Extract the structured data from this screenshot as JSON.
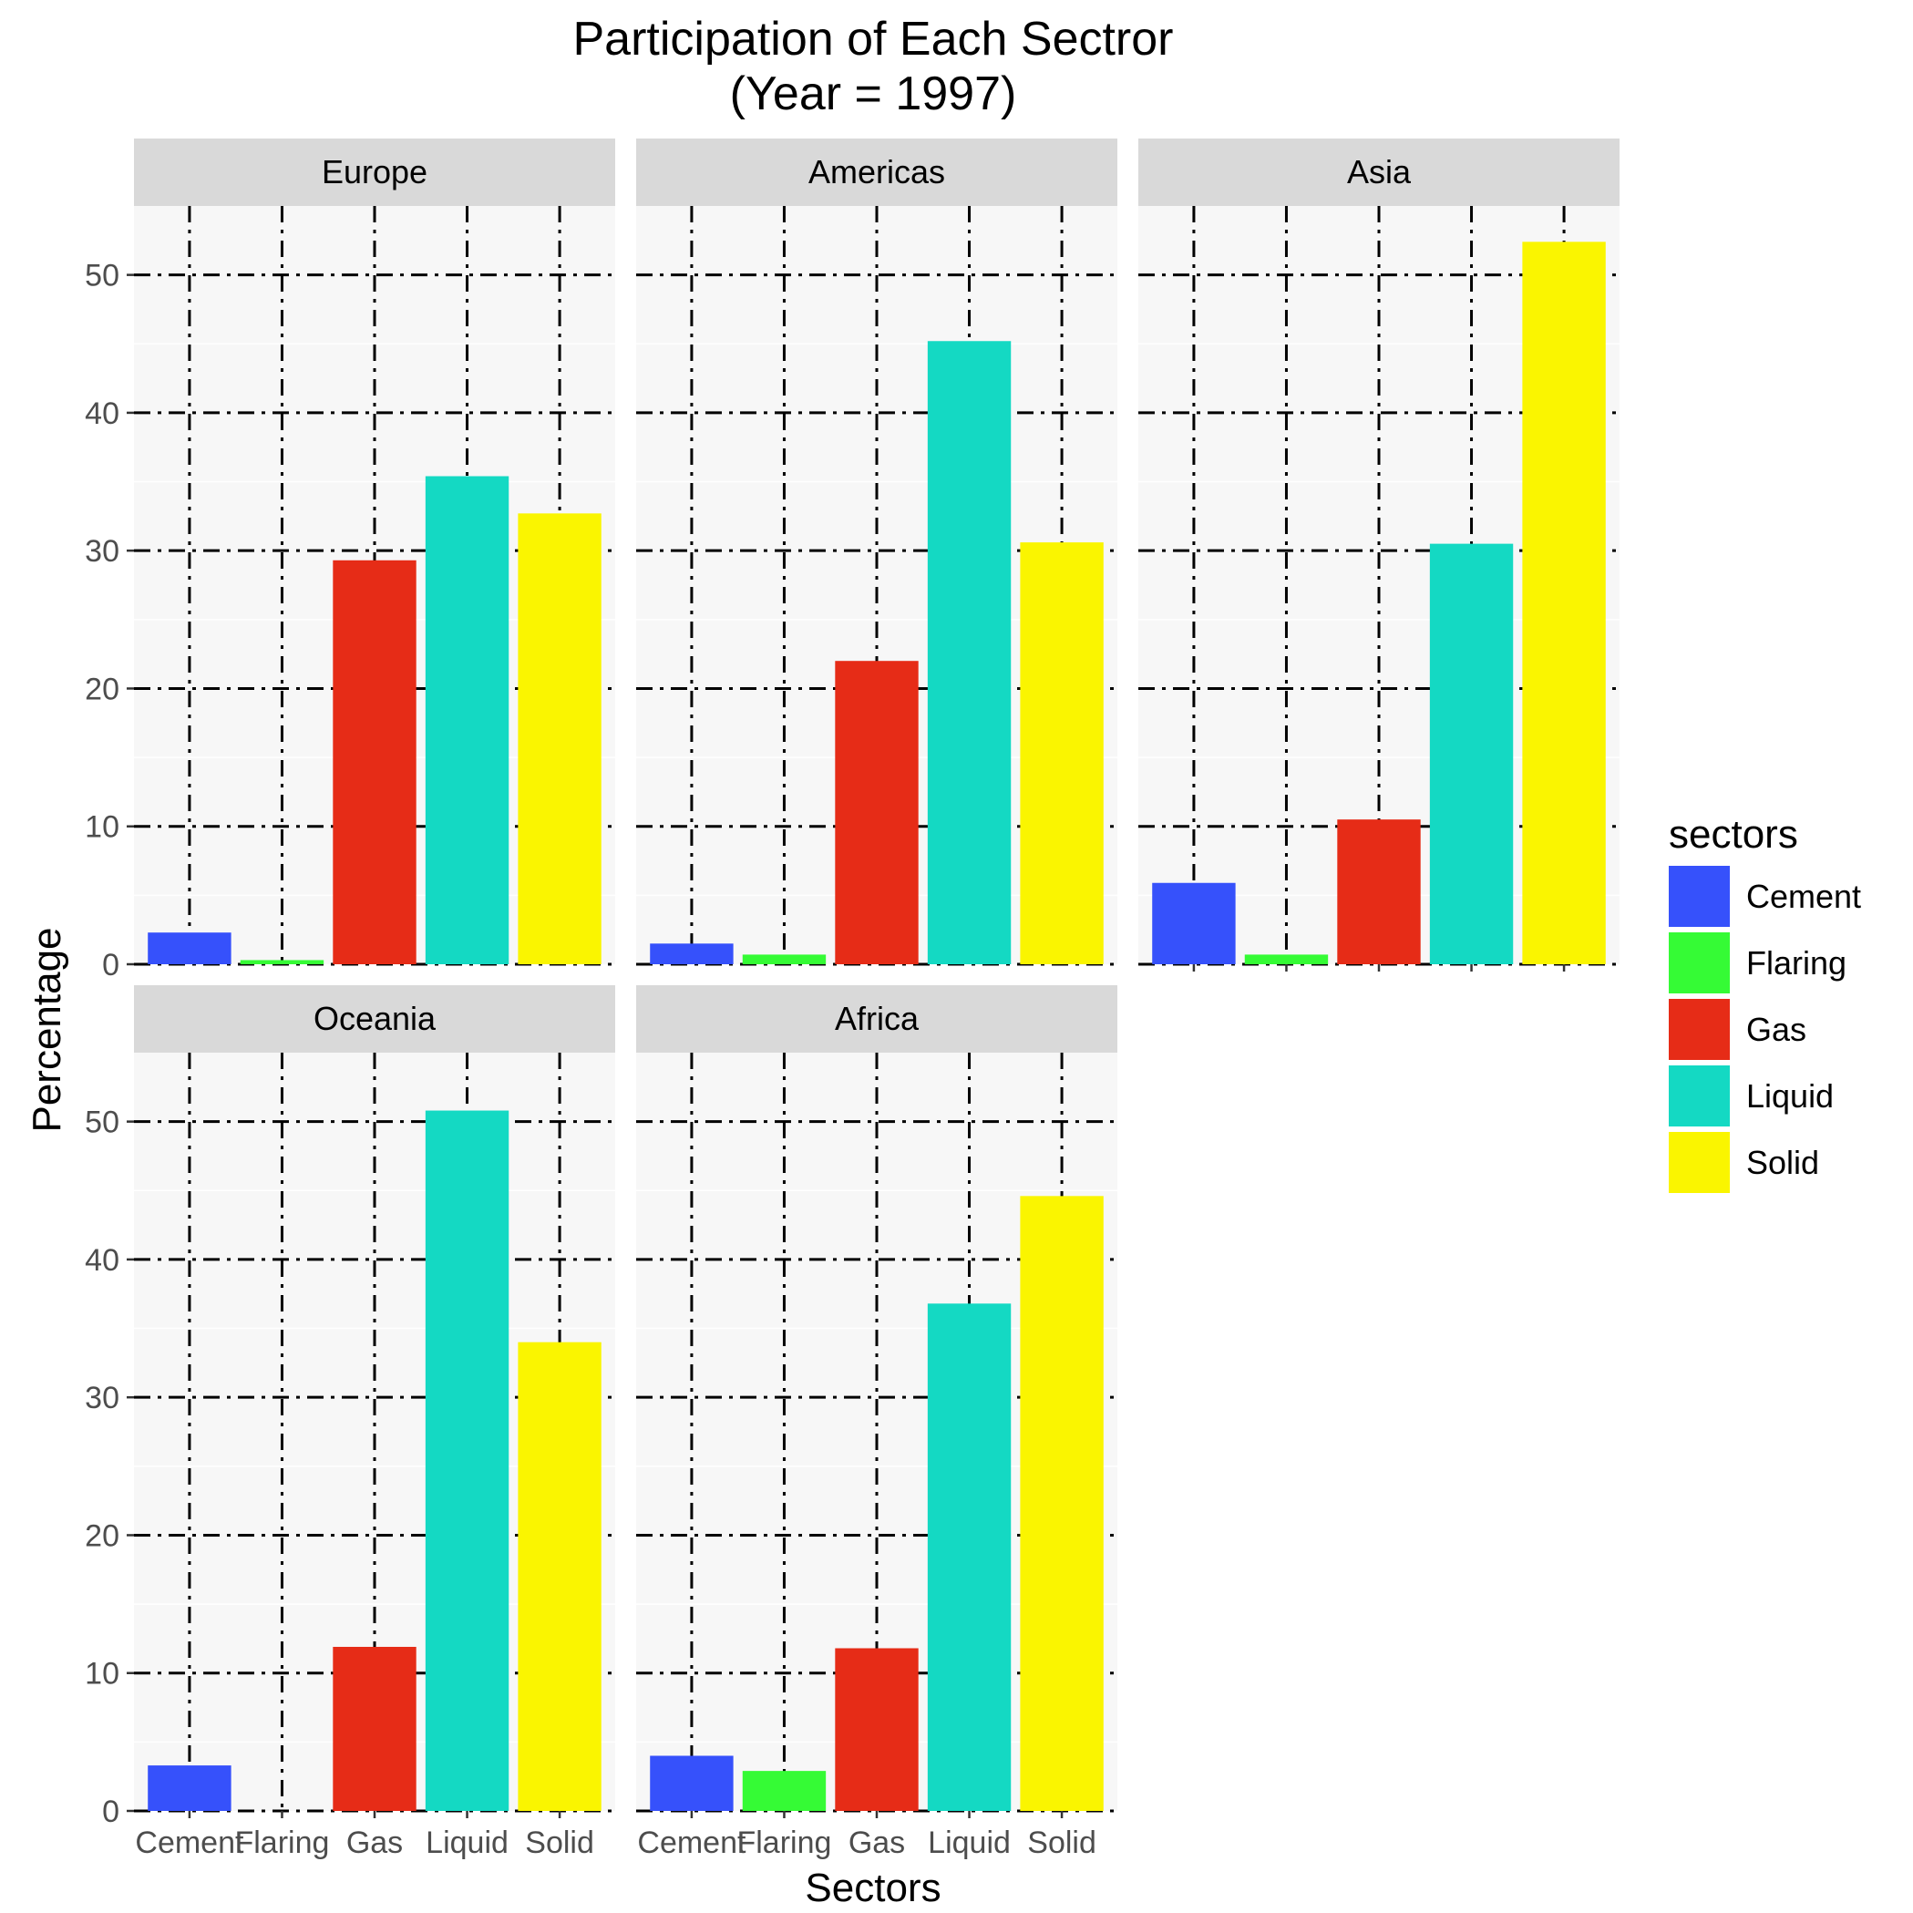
{
  "chart_data": {
    "type": "bar",
    "title": "Participation of Each Sectror",
    "subtitle": "(Year = 1997)",
    "xlabel": "Sectors",
    "ylabel": "Percentage",
    "ylim": [
      0,
      55
    ],
    "yticks": [
      0,
      10,
      20,
      30,
      40,
      50
    ],
    "grid": true,
    "legend_title": "sectors",
    "legend_position": "right",
    "categories": [
      "Cement",
      "Flaring",
      "Gas",
      "Liquid",
      "Solid"
    ],
    "colors": {
      "Cement": "#3651fb",
      "Flaring": "#35fb35",
      "Gas": "#e62c17",
      "Liquid": "#14d9c3",
      "Solid": "#faf500"
    },
    "facets": [
      {
        "name": "Europe",
        "values": [
          2.3,
          0.3,
          29.3,
          35.4,
          32.7
        ]
      },
      {
        "name": "Americas",
        "values": [
          1.5,
          0.7,
          22.0,
          45.2,
          30.6
        ]
      },
      {
        "name": "Asia",
        "values": [
          5.9,
          0.7,
          10.5,
          30.5,
          52.4
        ]
      },
      {
        "name": "Oceania",
        "values": [
          3.3,
          0.0,
          11.9,
          50.8,
          34.0
        ]
      },
      {
        "name": "Africa",
        "values": [
          4.0,
          2.9,
          11.8,
          36.8,
          44.6
        ]
      }
    ]
  },
  "theme": {
    "panel_bg": "#f7f7f7",
    "strip_bg": "#d9d9d9",
    "grid_color": "#000000",
    "minor_grid_color": "#ffffff",
    "text_color": "#000000",
    "tick_text_color": "#4d4d4d"
  }
}
